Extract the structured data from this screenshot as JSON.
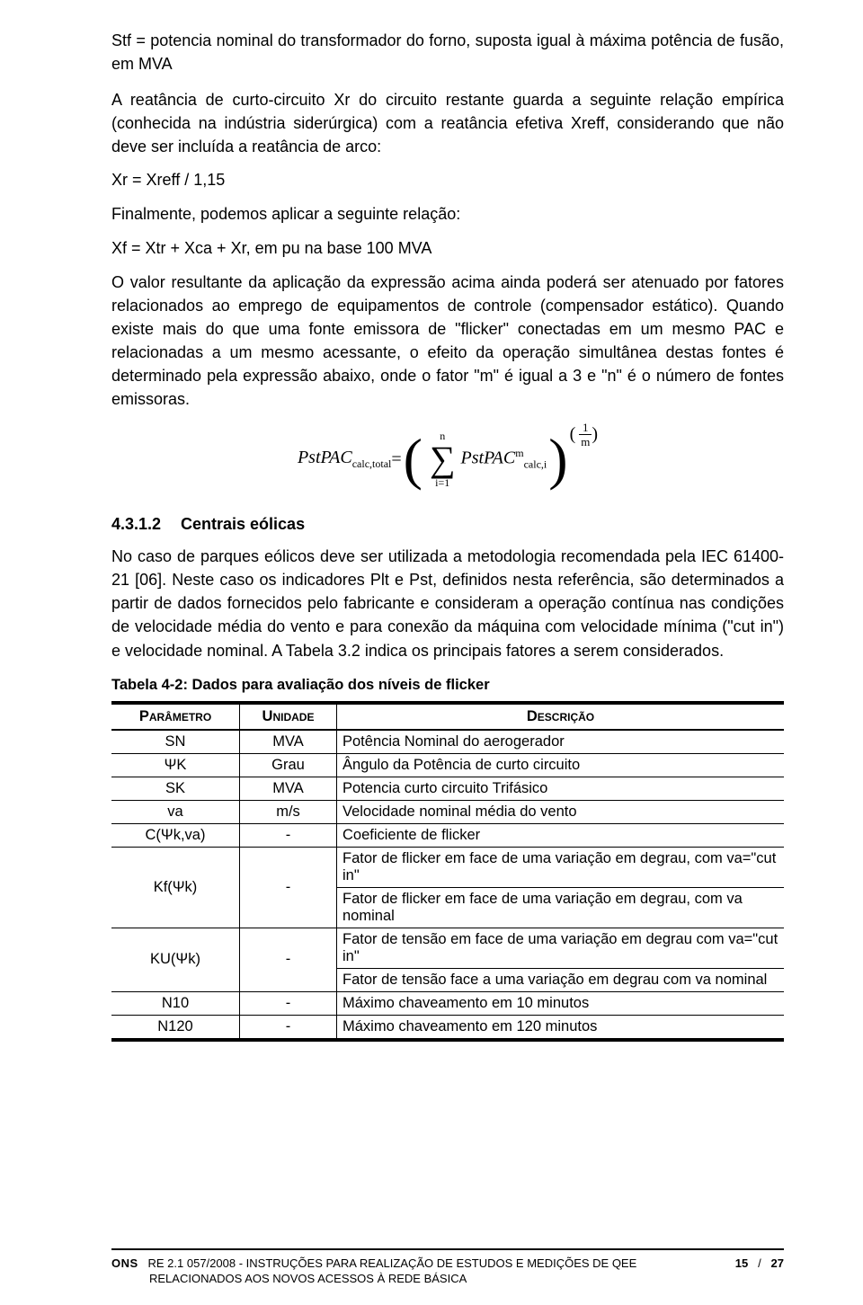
{
  "intro": {
    "p1": "Stf = potencia nominal do transformador do forno, suposta igual à máxima potência de  fusão, em MVA",
    "p2": "A reatância de curto-circuito Xr do circuito restante guarda a seguinte relação empírica (conhecida na indústria siderúrgica) com a reatância efetiva Xreff, considerando que não deve ser incluída a reatância de arco:",
    "eq1": "Xr = Xreff / 1,15",
    "p3": "Finalmente, podemos aplicar a seguinte relação:",
    "eq2": "Xf = Xtr + Xca + Xr, em pu na base 100 MVA",
    "p4": "O valor resultante da aplicação da expressão acima ainda poderá ser atenuado por fatores relacionados ao emprego de equipamentos de controle (compensador estático). Quando existe mais do que uma fonte emissora de \"flicker\" conectadas em um mesmo PAC e relacionadas a um mesmo acessante, o efeito da operação simultânea destas fontes é determinado pela expressão abaixo, onde o fator \"m\" é igual a 3 e  \"n\" é o número de  fontes emissoras."
  },
  "formula": {
    "lhs": "PstPAC",
    "lhs_sub": "calc,total",
    "eq": " = ",
    "sum_upper": "n",
    "sum_lower": "i=1",
    "rhs_base": "PstPAC",
    "rhs_sup": "m",
    "rhs_sub": "calc,i",
    "exp_num": "1",
    "exp_den": "m"
  },
  "section": {
    "number": "4.3.1.2",
    "title": "Centrais eólicas",
    "body": "No caso de parques eólicos deve ser utilizada a metodologia recomendada pela IEC 61400-21 [06]. Neste caso os indicadores Plt e Pst, definidos nesta referência, são determinados a partir de dados fornecidos pelo fabricante e consideram a operação contínua nas condições de velocidade média do vento e para conexão da máquina com velocidade mínima (\"cut in\") e velocidade nominal. A Tabela 3.2 indica os principais fatores a serem considerados."
  },
  "table": {
    "caption": "Tabela 4-2: Dados para avaliação dos níveis de flicker",
    "headers": {
      "param": "Parâmetro",
      "unit": "Unidade",
      "desc": "Descrição"
    },
    "rows": [
      {
        "param": "SN",
        "unit": "MVA",
        "desc": [
          "Potência Nominal do aerogerador"
        ]
      },
      {
        "param": "ΨK",
        "unit": "Grau",
        "desc": [
          "Ângulo da Potência de curto circuito"
        ]
      },
      {
        "param": "SK",
        "unit": "MVA",
        "desc": [
          "Potencia curto circuito Trifásico"
        ]
      },
      {
        "param": "va",
        "unit": "m/s",
        "desc": [
          "Velocidade nominal média do vento"
        ]
      },
      {
        "param": "C(Ψk,va)",
        "unit": "-",
        "desc": [
          "Coeficiente de flicker"
        ]
      },
      {
        "param": "Kf(Ψk)",
        "unit": "-",
        "desc": [
          "Fator de flicker em face de uma variação em degrau, com va=\"cut in\"",
          "Fator de flicker em face de uma variação em degrau, com va nominal"
        ]
      },
      {
        "param": "KU(Ψk)",
        "unit": "-",
        "desc": [
          "Fator de tensão em face de uma variação em degrau com va=\"cut in\"",
          "Fator de tensão face a uma variação em degrau com va nominal"
        ]
      },
      {
        "param": "N10",
        "unit": "-",
        "desc": [
          "Máximo chaveamento em 10 minutos"
        ]
      },
      {
        "param": "N120",
        "unit": "-",
        "desc": [
          "Máximo chaveamento em 120 minutos"
        ]
      }
    ]
  },
  "footer": {
    "ons": "ONS",
    "code": "RE 2.1 057/2008 - INSTRUÇÕES PARA REALIZAÇÃO DE ESTUDOS E MEDIÇÕES DE QEE",
    "line2": "RELACIONADOS AOS NOVOS ACESSOS À REDE BÁSICA",
    "page_cur": "15",
    "page_sep": "/",
    "page_tot": "27"
  }
}
